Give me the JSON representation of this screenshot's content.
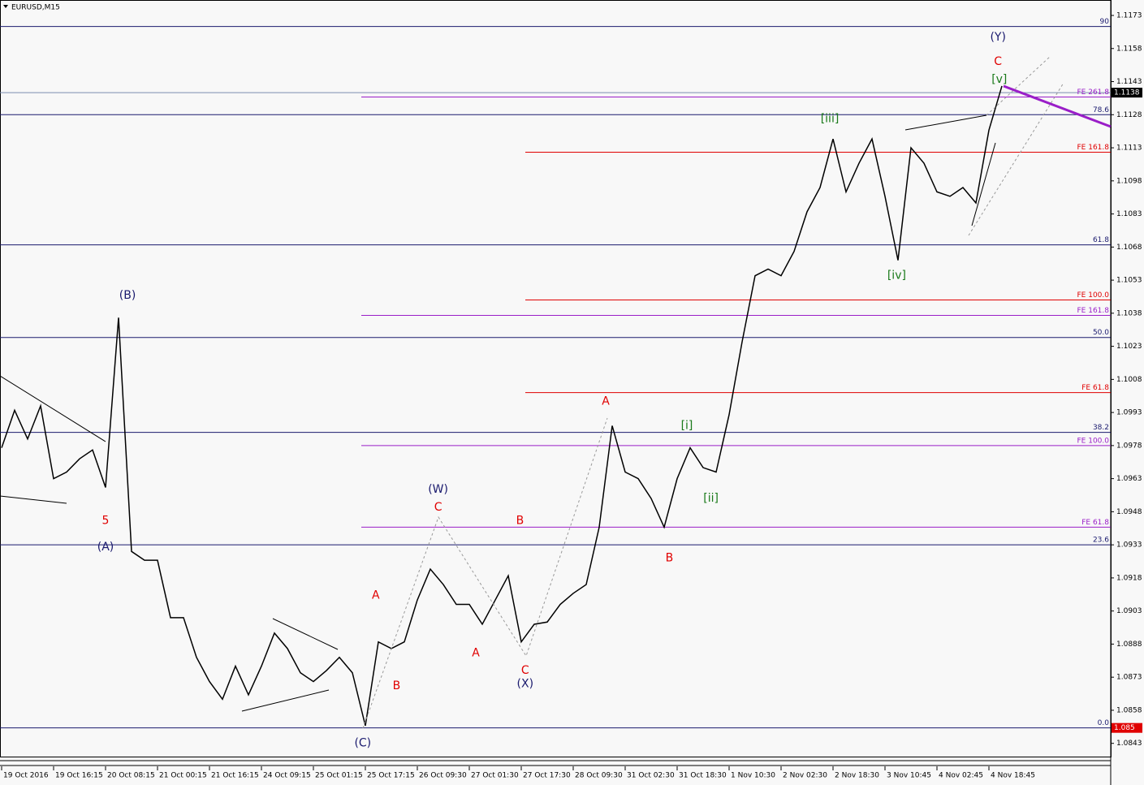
{
  "chart_data": {
    "type": "line",
    "title": "EURUSD,M15",
    "categories": [
      "19 Oct 2016",
      null,
      null,
      null,
      "19 Oct 16:15",
      null,
      null,
      null,
      "20 Oct 08:15",
      null,
      null,
      null,
      "21 Oct 00:15",
      null,
      null,
      null,
      "21 Oct 16:15",
      null,
      null,
      null,
      "24 Oct 09:15",
      null,
      null,
      null,
      "25 Oct 01:15",
      null,
      null,
      null,
      "25 Oct 17:15",
      null,
      null,
      null,
      "26 Oct 09:30",
      null,
      null,
      null,
      "27 Oct 01:30",
      null,
      null,
      null,
      "27 Oct 17:30",
      null,
      null,
      null,
      "28 Oct 09:30",
      null,
      null,
      null,
      "31 Oct 02:30",
      null,
      null,
      null,
      "31 Oct 18:30",
      null,
      null,
      null,
      "1 Nov 10:30",
      null,
      null,
      null,
      "2 Nov 02:30",
      null,
      null,
      null,
      "2 Nov 18:30",
      null,
      null,
      null,
      "3 Nov 10:45",
      null,
      null,
      null,
      "4 Nov 02:45",
      null,
      null,
      null,
      "4 Nov 18:45",
      null
    ],
    "series": [
      {
        "name": "EURUSD",
        "color": "#000000",
        "values": [
          1.0977,
          1.0994,
          1.0981,
          1.0996,
          1.0963,
          1.0966,
          1.0972,
          1.0976,
          1.0959,
          1.1036,
          1.093,
          1.0926,
          1.0926,
          1.09,
          1.09,
          1.0882,
          1.0871,
          1.0863,
          1.0878,
          1.0865,
          1.0878,
          1.0893,
          1.0886,
          1.0875,
          1.0871,
          1.0876,
          1.0882,
          1.0875,
          1.0851,
          1.0889,
          1.0886,
          1.0889,
          1.0908,
          1.0922,
          1.0915,
          1.0906,
          1.0906,
          1.0897,
          1.0908,
          1.0919,
          1.0889,
          1.0897,
          1.0898,
          1.0906,
          1.0911,
          1.0915,
          1.0941,
          1.0987,
          1.0966,
          1.0963,
          1.0954,
          1.0941,
          1.0963,
          1.0977,
          1.0968,
          1.0966,
          1.0992,
          1.1025,
          1.1055,
          1.1058,
          1.1055,
          1.1066,
          1.1084,
          1.1095,
          1.1117,
          1.1093,
          1.1106,
          1.1117,
          1.1091,
          1.1062,
          1.1113,
          1.1106,
          1.1093,
          1.1091,
          1.1095,
          1.1088,
          1.1121,
          1.1141
        ]
      }
    ],
    "ylim": [
      1.0837,
      1.118
    ],
    "yticks": [
      1.1173,
      1.1158,
      1.1143,
      1.1128,
      1.1113,
      1.1098,
      1.1083,
      1.1068,
      1.1053,
      1.1038,
      1.1023,
      1.1008,
      1.0993,
      1.0978,
      1.0963,
      1.0948,
      1.0933,
      1.0918,
      1.0903,
      1.0888,
      1.0873,
      1.0858,
      1.0843
    ],
    "retracement_levels": {
      "color": "#1a1a6e",
      "levels": [
        {
          "label": "90",
          "price": 1.1168
        },
        {
          "label": "78.6",
          "price": 1.1128
        },
        {
          "label": "61.8",
          "price": 1.1069
        },
        {
          "label": "50.0",
          "price": 1.1027
        },
        {
          "label": "38.2",
          "price": 1.0984
        },
        {
          "label": "23.6",
          "price": 1.0933
        },
        {
          "label": "0.0",
          "price": 1.085
        }
      ]
    },
    "fe_levels_red": {
      "color": "#e00000",
      "levels": [
        {
          "label": "FE 161.8",
          "price": 1.1111
        },
        {
          "label": "FE 100.0",
          "price": 1.1044
        },
        {
          "label": "FE 61.8",
          "price": 1.1002
        }
      ]
    },
    "fe_levels_purple": {
      "color": "#9a1ec8",
      "levels": [
        {
          "label": "FE 261.8",
          "price": 1.1136
        },
        {
          "label": "FE 161.8",
          "price": 1.1037
        },
        {
          "label": "FE 100.0",
          "price": 1.0978
        },
        {
          "label": "FE 61.8",
          "price": 1.0941
        }
      ]
    },
    "price_tags": [
      {
        "value": 1.1138,
        "color": "#000000"
      },
      {
        "value": 1.085,
        "color": "#e00000"
      }
    ],
    "wave_labels": [
      {
        "text": "(B)",
        "x": 9.69,
        "y": 1.1046,
        "color": "#1a1a6e"
      },
      {
        "text": "5",
        "x": 8.0,
        "y": 1.0944,
        "color": "#e00000"
      },
      {
        "text": "(A)",
        "x": 8.0,
        "y": 1.0932,
        "color": "#1a1a6e"
      },
      {
        "text": "(C)",
        "x": 27.8,
        "y": 1.0843,
        "color": "#1a1a6e"
      },
      {
        "text": "A",
        "x": 28.8,
        "y": 1.091,
        "color": "#e00000"
      },
      {
        "text": "B",
        "x": 30.4,
        "y": 1.0869,
        "color": "#e00000"
      },
      {
        "text": "(W)",
        "x": 33.6,
        "y": 1.0958,
        "color": "#1a1a6e"
      },
      {
        "text": "C",
        "x": 33.6,
        "y": 1.095,
        "color": "#e00000"
      },
      {
        "text": "A",
        "x": 36.5,
        "y": 1.0884,
        "color": "#e00000"
      },
      {
        "text": "B",
        "x": 39.9,
        "y": 1.0944,
        "color": "#e00000"
      },
      {
        "text": "C",
        "x": 40.3,
        "y": 1.0876,
        "color": "#e00000"
      },
      {
        "text": "(X)",
        "x": 40.3,
        "y": 1.087,
        "color": "#1a1a6e"
      },
      {
        "text": "A",
        "x": 46.5,
        "y": 1.0998,
        "color": "#e00000"
      },
      {
        "text": "B",
        "x": 51.4,
        "y": 1.0927,
        "color": "#e00000"
      },
      {
        "text": "[i]",
        "x": 52.75,
        "y": 1.0987,
        "color": "#1a7a1a"
      },
      {
        "text": "[ii]",
        "x": 54.6,
        "y": 1.0954,
        "color": "#1a7a1a"
      },
      {
        "text": "[iii]",
        "x": 63.75,
        "y": 1.1126,
        "color": "#1a7a1a"
      },
      {
        "text": "[iv]",
        "x": 68.9,
        "y": 1.1055,
        "color": "#1a7a1a"
      },
      {
        "text": "[v]",
        "x": 76.8,
        "y": 1.1144,
        "color": "#1a7a1a"
      },
      {
        "text": "C",
        "x": 76.7,
        "y": 1.1152,
        "color": "#e00000"
      },
      {
        "text": "(Y)",
        "x": 76.7,
        "y": 1.1163,
        "color": "#1a1a6e"
      }
    ]
  }
}
